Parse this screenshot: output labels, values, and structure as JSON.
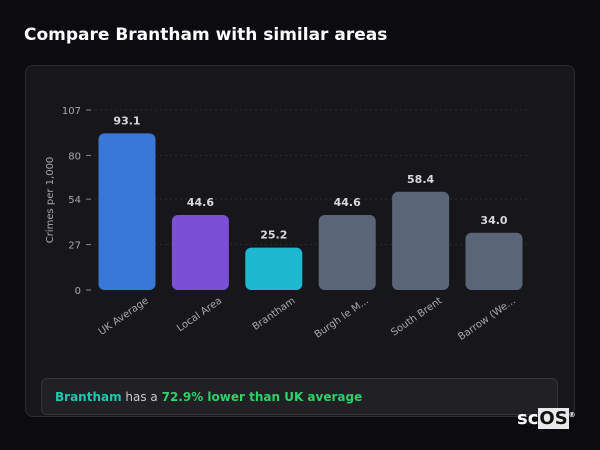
{
  "title": "Compare Brantham with similar areas",
  "chart_data": {
    "type": "bar",
    "title": "",
    "xlabel": "",
    "ylabel": "Crimes per 1,000",
    "ylim": [
      0,
      107
    ],
    "yticks": [
      0,
      27,
      54,
      80,
      107
    ],
    "grid": true,
    "categories": [
      "UK Average",
      "Local Area",
      "Brantham",
      "Burgh le M...",
      "South Brent",
      "Barrow (We..."
    ],
    "values": [
      93.1,
      44.6,
      25.2,
      44.6,
      58.4,
      34.0
    ],
    "data_labels": [
      "93.1",
      "44.6",
      "25.2",
      "44.6",
      "58.4",
      "34.0"
    ],
    "colors": [
      "#3a78d8",
      "#7b4fd6",
      "#1fb9cf",
      "#5a6578",
      "#5a6578",
      "#5a6578"
    ]
  },
  "summary": {
    "area": "Brantham",
    "middle": " has a ",
    "comparison": "72.9% lower than UK average"
  },
  "watermark": {
    "a": "sc",
    "b": "OS",
    "mark": "®"
  }
}
